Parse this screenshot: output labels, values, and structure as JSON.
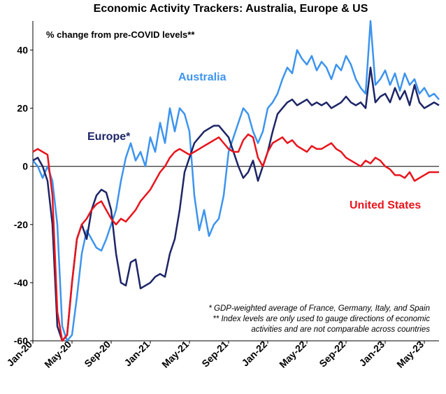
{
  "chart_data": {
    "type": "line",
    "title": "Economic Activity Trackers: Australia, Europe & US",
    "subtitle": "% change from pre-COVID levels**",
    "annotations": [
      "* GDP-weighted average of France, Germany, Italy, and Spain",
      "** Index levels are only used to gauge  directions of economic",
      "activities and are not comparable across countries"
    ],
    "categories": [
      "Jan-20",
      null,
      null,
      null,
      null,
      null,
      null,
      null,
      "May-20",
      null,
      null,
      null,
      null,
      null,
      null,
      null,
      "Sep-20",
      null,
      null,
      null,
      null,
      null,
      null,
      null,
      "Jan-21",
      null,
      null,
      null,
      null,
      null,
      null,
      null,
      "May-21",
      null,
      null,
      null,
      null,
      null,
      null,
      null,
      "Sep-21",
      null,
      null,
      null,
      null,
      null,
      null,
      null,
      "Jan-22",
      null,
      null,
      null,
      null,
      null,
      null,
      null,
      "May-22",
      null,
      null,
      null,
      null,
      null,
      null,
      null,
      "Sep-22",
      null,
      null,
      null,
      null,
      null,
      null,
      null,
      "Jan-23",
      null,
      null,
      null,
      null,
      null,
      null,
      null,
      "May-23",
      null,
      null,
      null
    ],
    "series": [
      {
        "name": "Australia",
        "color": "#3d94ee",
        "values": [
          2,
          0,
          -4,
          0,
          -5,
          -20,
          -55,
          -60,
          -58,
          -45,
          -30,
          -22,
          -25,
          -28,
          -29,
          -25,
          -20,
          -15,
          -5,
          3,
          8,
          2,
          5,
          0,
          10,
          5,
          15,
          8,
          20,
          12,
          20,
          18,
          12,
          -10,
          -22,
          -15,
          -24,
          -20,
          -18,
          -10,
          5,
          10,
          15,
          20,
          18,
          12,
          8,
          12,
          20,
          22,
          25,
          30,
          34,
          32,
          40,
          37,
          35,
          38,
          33,
          36,
          34,
          30,
          35,
          33,
          38,
          35,
          30,
          27,
          25,
          50,
          28,
          30,
          33,
          28,
          32,
          26,
          32,
          28,
          30,
          25,
          27,
          24,
          25,
          23
        ]
      },
      {
        "name": "Europe*",
        "color": "#1c2566",
        "values": [
          2,
          3,
          0,
          -5,
          -20,
          -55,
          -60,
          -58,
          -40,
          -25,
          -20,
          -25,
          -15,
          -10,
          -8,
          -9,
          -15,
          -30,
          -40,
          -41,
          -33,
          -32,
          -42,
          -41,
          -40,
          -38,
          -37,
          -38,
          -30,
          -25,
          -15,
          -2,
          3,
          8,
          10,
          12,
          13,
          14,
          14,
          12,
          10,
          5,
          0,
          -4,
          -2,
          2,
          -5,
          0,
          5,
          12,
          18,
          20,
          22,
          23,
          21,
          22,
          23,
          21,
          22,
          21,
          22,
          20,
          21,
          22,
          24,
          22,
          21,
          22,
          20,
          34,
          22,
          24,
          25,
          22,
          27,
          23,
          26,
          21,
          28,
          22,
          20,
          21,
          22,
          21
        ]
      },
      {
        "name": "United States",
        "color": "#e8141c",
        "values": [
          5,
          6,
          5,
          4,
          -10,
          -50,
          -60,
          -58,
          -40,
          -25,
          -20,
          -18,
          -15,
          -13,
          -12,
          -15,
          -18,
          -20,
          -18,
          -19,
          -17,
          -15,
          -12,
          -10,
          -8,
          -5,
          -2,
          0,
          3,
          5,
          6,
          5,
          4,
          5,
          6,
          7,
          8,
          9,
          10,
          8,
          6,
          5,
          5,
          9,
          11,
          10,
          3,
          0,
          5,
          8,
          9,
          10,
          8,
          9,
          7,
          6,
          5,
          7,
          6,
          6,
          7,
          8,
          6,
          5,
          3,
          2,
          1,
          0,
          2,
          1,
          3,
          2,
          0,
          -1,
          -3,
          -3,
          -4,
          -2,
          -5,
          -4,
          -3,
          -2,
          -2,
          -2
        ]
      }
    ],
    "ylim": [
      -60,
      50
    ],
    "yticks": [
      -60,
      -40,
      -20,
      0,
      20,
      40
    ],
    "grid": false
  }
}
